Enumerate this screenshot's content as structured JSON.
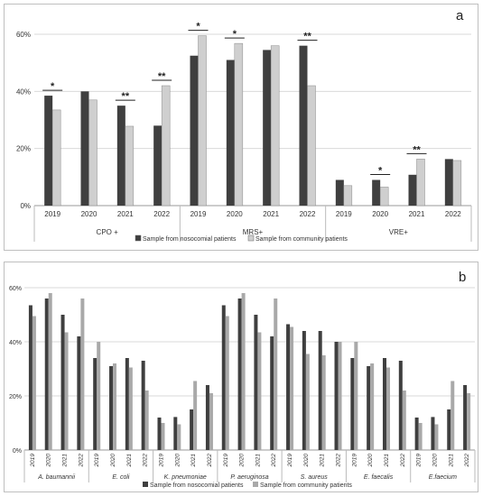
{
  "chart_data": [
    {
      "type": "bar",
      "panel_label": "a",
      "ylim": [
        0,
        60
      ],
      "yticks": [
        "0%",
        "20%",
        "40%",
        "60%"
      ],
      "groups": [
        "CPO +",
        "MRS+",
        "VRE+"
      ],
      "years": [
        "2019",
        "2020",
        "2021",
        "2022"
      ],
      "series": [
        {
          "name": "Sample from nosocomial patients",
          "color": "#3f3f3f",
          "values": [
            38.5,
            40.0,
            35.0,
            28.0,
            52.5,
            51.0,
            54.5,
            56.0,
            9.0,
            9.0,
            10.8,
            16.3
          ]
        },
        {
          "name": "Sample from community patients",
          "color": "#cfcfcf",
          "values": [
            33.5,
            37.0,
            27.8,
            42.0,
            59.5,
            56.8,
            56.0,
            42.0,
            7.0,
            6.5,
            16.3,
            15.8
          ]
        }
      ],
      "significance": [
        "*",
        "",
        "**",
        "**",
        "*",
        "*",
        "",
        "**",
        "",
        "*",
        "**",
        ""
      ],
      "legend_position": "bottom"
    },
    {
      "type": "bar",
      "panel_label": "b",
      "ylim": [
        0,
        60
      ],
      "yticks": [
        "0%",
        "20%",
        "40%",
        "60%"
      ],
      "groups": [
        "A. baumannii",
        "E. coli",
        "K. pneumoniae",
        "P. aeruginosa",
        "S. aureus",
        "E. faecalis",
        "E.faecium"
      ],
      "years": [
        "2019",
        "2020",
        "2021",
        "2022"
      ],
      "series": [
        {
          "name": "Sample from nosocomial patients",
          "color": "#3f3f3f",
          "values": [
            53.5,
            56.0,
            50.0,
            42.0,
            34.0,
            31.0,
            34.0,
            33.0,
            12.0,
            12.2,
            15.0,
            24.0,
            53.5,
            56.0,
            50.0,
            42.0,
            46.5,
            44.0,
            44.0,
            40.0,
            34.0,
            31.0,
            34.0,
            33.0,
            12.0,
            12.2,
            15.0,
            24.0
          ]
        },
        {
          "name": "Sample from community patients",
          "color": "#a9a9a9",
          "values": [
            49.5,
            58.0,
            43.5,
            56.0,
            40.0,
            32.0,
            30.5,
            22.0,
            10.0,
            9.5,
            25.5,
            21.0,
            49.5,
            58.0,
            43.5,
            56.0,
            45.5,
            35.5,
            35.0,
            40.0,
            40.0,
            32.0,
            30.5,
            22.0,
            10.0,
            9.5,
            25.5,
            21.0
          ]
        }
      ],
      "legend_position": "bottom"
    }
  ]
}
